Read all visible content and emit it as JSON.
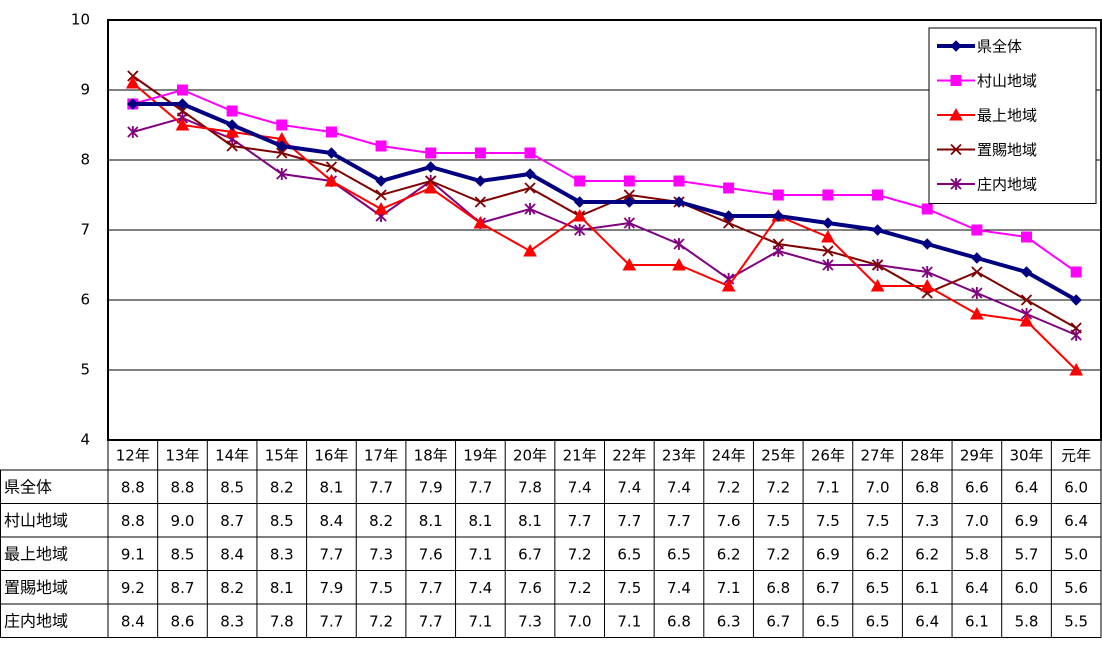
{
  "chart_data": {
    "type": "line",
    "categories": [
      "12年",
      "13年",
      "14年",
      "15年",
      "16年",
      "17年",
      "18年",
      "19年",
      "20年",
      "21年",
      "22年",
      "23年",
      "24年",
      "25年",
      "26年",
      "27年",
      "28年",
      "29年",
      "30年",
      "元年"
    ],
    "ylim": [
      4,
      10
    ],
    "yticks": [
      4,
      5,
      6,
      7,
      8,
      9,
      10
    ],
    "grid": true,
    "legend": "top-right",
    "series": [
      {
        "name": "県全体",
        "color": "#000080",
        "marker": "diamond",
        "values": [
          8.8,
          8.8,
          8.5,
          8.2,
          8.1,
          7.7,
          7.9,
          7.7,
          7.8,
          7.4,
          7.4,
          7.4,
          7.2,
          7.2,
          7.1,
          7.0,
          6.8,
          6.6,
          6.4,
          6.0
        ],
        "value_labels": [
          "8.8",
          "8.8",
          "8.5",
          "8.2",
          "8.1",
          "7.7",
          "7.9",
          "7.7",
          "7.8",
          "7.4",
          "7.4",
          "7.4",
          "7.2",
          "7.2",
          "7.1",
          "7.0",
          "6.8",
          "6.6",
          "6.4",
          "6.0"
        ]
      },
      {
        "name": "村山地域",
        "color": "#ff00ff",
        "marker": "square",
        "values": [
          8.8,
          9.0,
          8.7,
          8.5,
          8.4,
          8.2,
          8.1,
          8.1,
          8.1,
          7.7,
          7.7,
          7.7,
          7.6,
          7.5,
          7.5,
          7.5,
          7.3,
          7.0,
          6.9,
          6.4
        ],
        "value_labels": [
          "8.8",
          "9.0",
          "8.7",
          "8.5",
          "8.4",
          "8.2",
          "8.1",
          "8.1",
          "8.1",
          "7.7",
          "7.7",
          "7.7",
          "7.6",
          "7.5",
          "7.5",
          "7.5",
          "7.3",
          "7.0",
          "6.9",
          "6.4"
        ]
      },
      {
        "name": "最上地域",
        "color": "#ff0000",
        "marker": "triangle",
        "values": [
          9.1,
          8.5,
          8.4,
          8.3,
          7.7,
          7.3,
          7.6,
          7.1,
          6.7,
          7.2,
          6.5,
          6.5,
          6.2,
          7.2,
          6.9,
          6.2,
          6.2,
          5.8,
          5.7,
          5.0
        ],
        "value_labels": [
          "9.1",
          "8.5",
          "8.4",
          "8.3",
          "7.7",
          "7.3",
          "7.6",
          "7.1",
          "6.7",
          "7.2",
          "6.5",
          "6.5",
          "6.2",
          "7.2",
          "6.9",
          "6.2",
          "6.2",
          "5.8",
          "5.7",
          "5.0"
        ]
      },
      {
        "name": "置賜地域",
        "color": "#800000",
        "marker": "x",
        "values": [
          9.2,
          8.7,
          8.2,
          8.1,
          7.9,
          7.5,
          7.7,
          7.4,
          7.6,
          7.2,
          7.5,
          7.4,
          7.1,
          6.8,
          6.7,
          6.5,
          6.1,
          6.4,
          6.0,
          5.6
        ],
        "value_labels": [
          "9.2",
          "8.7",
          "8.2",
          "8.1",
          "7.9",
          "7.5",
          "7.7",
          "7.4",
          "7.6",
          "7.2",
          "7.5",
          "7.4",
          "7.1",
          "6.8",
          "6.7",
          "6.5",
          "6.1",
          "6.4",
          "6.0",
          "5.6"
        ]
      },
      {
        "name": "庄内地域",
        "color": "#800080",
        "marker": "asterisk",
        "values": [
          8.4,
          8.6,
          8.3,
          7.8,
          7.7,
          7.2,
          7.7,
          7.1,
          7.3,
          7.0,
          7.1,
          6.8,
          6.3,
          6.7,
          6.5,
          6.5,
          6.4,
          6.1,
          5.8,
          5.5
        ],
        "value_labels": [
          "8.4",
          "8.6",
          "8.3",
          "7.8",
          "7.7",
          "7.2",
          "7.7",
          "7.1",
          "7.3",
          "7.0",
          "7.1",
          "6.8",
          "6.3",
          "6.7",
          "6.5",
          "6.5",
          "6.4",
          "6.1",
          "5.8",
          "5.5"
        ]
      }
    ]
  }
}
